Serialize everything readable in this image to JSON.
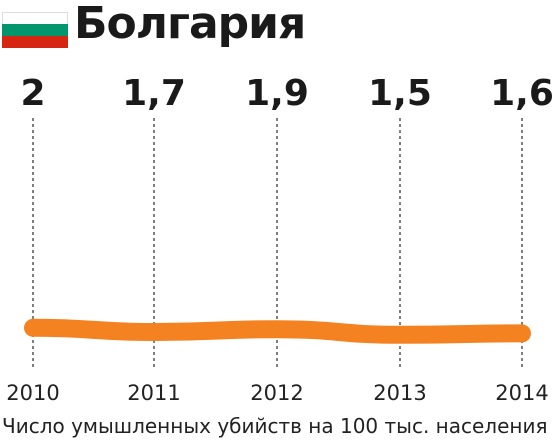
{
  "header": {
    "country": "Болгария",
    "flag_colors": [
      "#ffffff",
      "#00966e",
      "#d62612"
    ]
  },
  "chart_data": {
    "type": "line",
    "title": "Болгария",
    "categories": [
      "2010",
      "2011",
      "2012",
      "2013",
      "2014"
    ],
    "values": [
      2,
      1.7,
      1.9,
      1.5,
      1.6
    ],
    "value_labels": [
      "2",
      "1,7",
      "1,9",
      "1,5",
      "1,6"
    ],
    "xlabel": "Число умышленных убийств на 100 тыс. населения",
    "ylabel": "",
    "line_color": "#f58220",
    "grid": "vertical-dotted"
  }
}
